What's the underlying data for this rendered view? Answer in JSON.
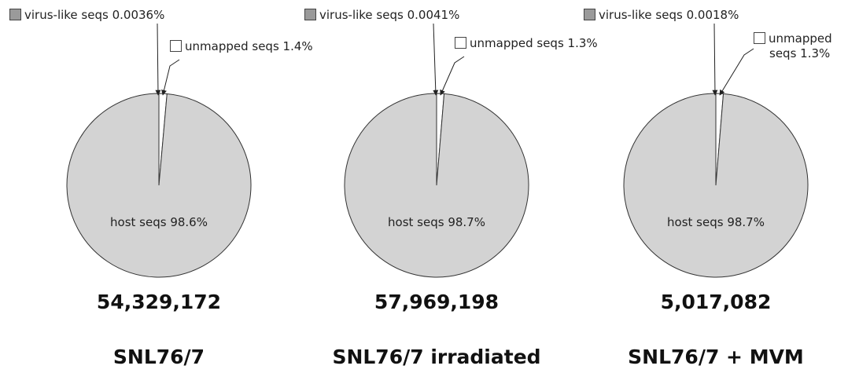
{
  "chart_data": [
    {
      "type": "pie",
      "title": "SNL76/7",
      "total": 54329172,
      "total_label": "54,329,172",
      "categories": [
        "virus-like seqs",
        "unmapped seqs",
        "host seqs"
      ],
      "values": [
        0.0036,
        1.4,
        98.6
      ],
      "value_labels": [
        "0.0036%",
        "1.4%",
        "98.6%"
      ],
      "colors": [
        "#9a9a9a",
        "#ffffff",
        "#d3d3d3"
      ]
    },
    {
      "type": "pie",
      "title": "SNL76/7 irradiated",
      "total": 57969198,
      "total_label": "57,969,198",
      "categories": [
        "virus-like seqs",
        "unmapped seqs",
        "host seqs"
      ],
      "values": [
        0.0041,
        1.3,
        98.7
      ],
      "value_labels": [
        "0.0041%",
        "1.3%",
        "98.7%"
      ],
      "colors": [
        "#9a9a9a",
        "#ffffff",
        "#d3d3d3"
      ]
    },
    {
      "type": "pie",
      "title": "SNL76/7 + MVM",
      "total": 5017082,
      "total_label": "5,017,082",
      "categories": [
        "virus-like seqs",
        "unmapped seqs",
        "host seqs"
      ],
      "values": [
        0.0018,
        1.3,
        98.7
      ],
      "value_labels": [
        "0.0018%",
        "1.3%",
        "98.7%"
      ],
      "colors": [
        "#9a9a9a",
        "#ffffff",
        "#d3d3d3"
      ]
    }
  ]
}
